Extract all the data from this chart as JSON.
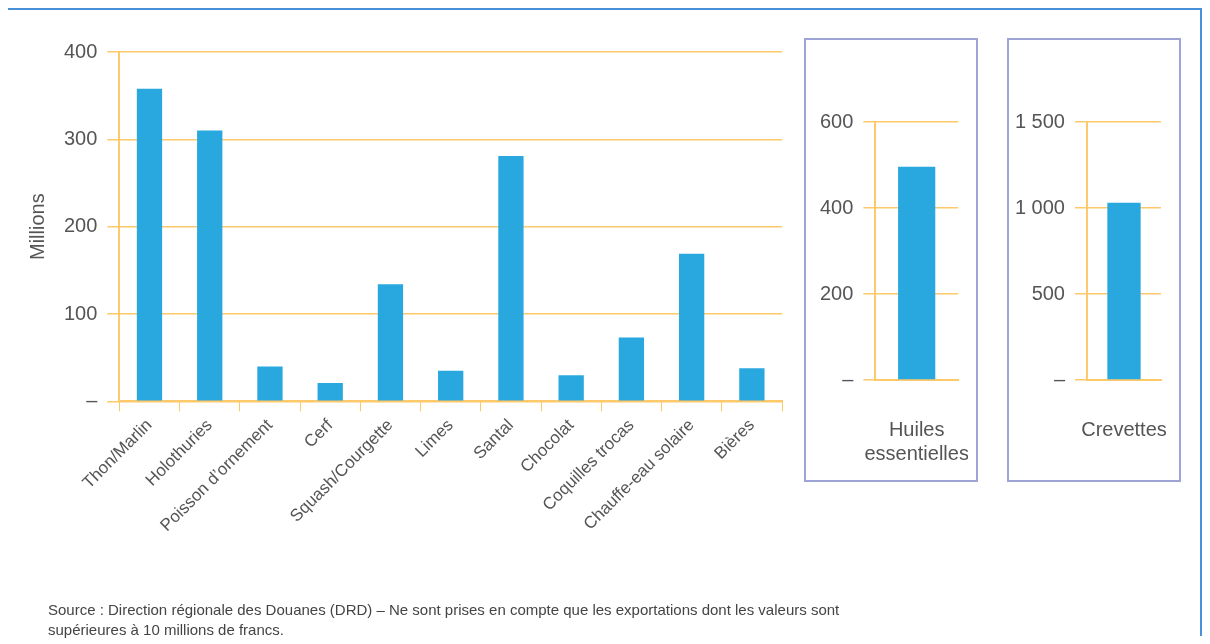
{
  "chart_data": [
    {
      "type": "bar",
      "ylabel": "Millions",
      "categories": [
        "Thon/Marlin",
        "Holothuries",
        "Poisson d’ornement",
        "Cerf",
        "Squash/Courgette",
        "Limes",
        "Santal",
        "Chocolat",
        "Coquilles trocas",
        "Chauffe-eau solaire",
        "Bières"
      ],
      "values": [
        358,
        310,
        40,
        21,
        134,
        35,
        281,
        30,
        73,
        169,
        38
      ],
      "color": "#29a8e0",
      "ylim": [
        0,
        400
      ],
      "yticks": [
        {
          "value": 0,
          "label": "–"
        },
        100,
        200,
        300,
        400
      ],
      "grid": "y",
      "annotations": [
        "Source : Direction régionale des Douanes (DRD) – Ne sont prises en compte que les exportations dont les valeurs sont supérieures à 10 millions de francs."
      ]
    },
    {
      "type": "bar",
      "categories": [
        "Huiles essentielles"
      ],
      "values": [
        496
      ],
      "color": "#29a8e0",
      "ylim": [
        0,
        600
      ],
      "yticks": [
        {
          "value": 0,
          "label": "–"
        },
        200,
        400,
        600
      ],
      "grid": "y"
    },
    {
      "type": "bar",
      "categories": [
        "Crevettes"
      ],
      "values": [
        1030
      ],
      "color": "#29a8e0",
      "ylim": [
        0,
        1500
      ],
      "yticks": [
        {
          "value": 0,
          "label": "–"
        },
        500,
        {
          "value": 1000,
          "label": "1 000"
        },
        {
          "value": 1500,
          "label": "1 500"
        }
      ],
      "grid": "y"
    }
  ]
}
